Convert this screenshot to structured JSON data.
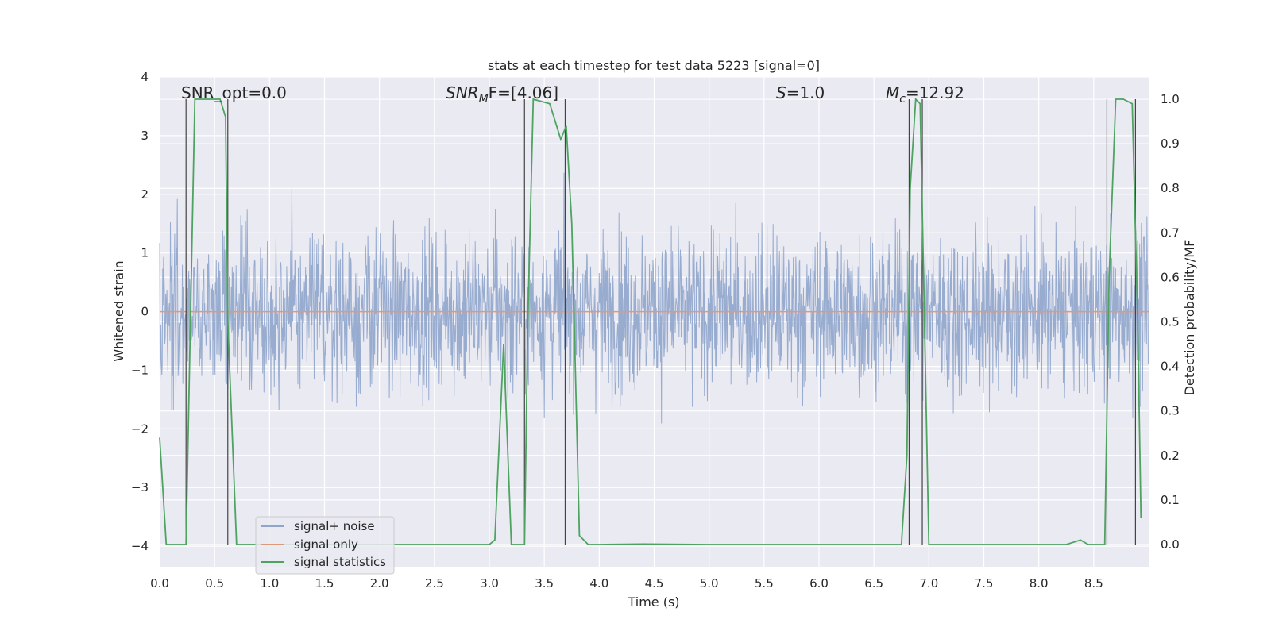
{
  "chart_data": {
    "type": "line",
    "title": "stats at each timestep for test data 5223 [signal=0]",
    "xlabel": "Time (s)",
    "ylabel": "Whitened strain",
    "ylabel_right": "Detection probability/MF",
    "xlim": [
      0.0,
      9.0
    ],
    "ylim": [
      -4.35,
      4.0
    ],
    "ylim_right": [
      -0.05,
      1.05
    ],
    "xticks": [
      "0.0",
      "0.5",
      "1.0",
      "1.5",
      "2.0",
      "2.5",
      "3.0",
      "3.5",
      "4.0",
      "4.5",
      "5.0",
      "5.5",
      "6.0",
      "6.5",
      "7.0",
      "7.5",
      "8.0",
      "8.5"
    ],
    "xtick_values": [
      0.0,
      0.5,
      1.0,
      1.5,
      2.0,
      2.5,
      3.0,
      3.5,
      4.0,
      4.5,
      5.0,
      5.5,
      6.0,
      6.5,
      7.0,
      7.5,
      8.0,
      8.5
    ],
    "yticks": [
      "−4",
      "−3",
      "−2",
      "−1",
      "0",
      "1",
      "2",
      "3",
      "4"
    ],
    "ytick_values": [
      -4,
      -3,
      -2,
      -1,
      0,
      1,
      2,
      3,
      4
    ],
    "yticks_right": [
      "0.0",
      "0.1",
      "0.2",
      "0.3",
      "0.4",
      "0.5",
      "0.6",
      "0.7",
      "0.8",
      "0.9",
      "1.0"
    ],
    "ytick_right_values": [
      0.0,
      0.1,
      0.2,
      0.3,
      0.4,
      0.5,
      0.6,
      0.7,
      0.8,
      0.9,
      1.0
    ],
    "grid": true,
    "legend_position": "bottom-left",
    "annotations": {
      "snr_opt": "SNR_opt=0.0",
      "snr_mf_prefix": "SNR",
      "snr_mf_sub": "M",
      "snr_mf_suffix": "F=[4.06]",
      "s_prefix": "S",
      "s_suffix": "=1.0",
      "mc_prefix": "M",
      "mc_sub": "c",
      "mc_suffix": "=12.92"
    },
    "series": [
      {
        "name": "signal+ noise",
        "color": "#8fa5cc",
        "axis": "left",
        "sample_rate_hz": 256,
        "envelope_upper_typical": 2.0,
        "envelope_lower_typical": -2.0,
        "x": [],
        "y": []
      },
      {
        "name": "signal only",
        "color": "#e0987a",
        "axis": "left",
        "x": [
          0.0,
          9.0
        ],
        "y": [
          0.0,
          0.0
        ]
      },
      {
        "name": "signal statistics",
        "color": "#4ea361",
        "axis": "right",
        "x": [
          0.0,
          0.06,
          0.24,
          0.28,
          0.32,
          0.55,
          0.6,
          0.62,
          0.7,
          1.0,
          2.0,
          3.0,
          3.05,
          3.13,
          3.2,
          3.32,
          3.35,
          3.4,
          3.55,
          3.65,
          3.7,
          3.75,
          3.82,
          3.9,
          4.0,
          4.4,
          5.0,
          6.0,
          6.75,
          6.8,
          6.83,
          6.88,
          6.92,
          6.96,
          7.0,
          8.0,
          8.25,
          8.38,
          8.45,
          8.6,
          8.64,
          8.7,
          8.77,
          8.85,
          8.9,
          8.93
        ],
        "y": [
          0.24,
          0.0,
          0.0,
          0.5,
          1.0,
          1.0,
          0.96,
          0.5,
          0.0,
          0.0,
          0.0,
          0.0,
          0.01,
          0.45,
          0.0,
          0.0,
          0.5,
          1.0,
          0.99,
          0.91,
          0.94,
          0.72,
          0.02,
          0.0,
          0.0,
          0.001,
          0.0,
          0.0,
          0.0,
          0.2,
          0.8,
          1.0,
          0.99,
          0.5,
          0.0,
          0.0,
          0.0,
          0.01,
          0.0,
          0.0,
          0.6,
          1.0,
          1.0,
          0.99,
          0.5,
          0.06
        ]
      }
    ],
    "vertical_lines": [
      {
        "x": 0.24,
        "ymin": 0.0,
        "ymax": 1.0
      },
      {
        "x": 0.62,
        "ymin": 0.0,
        "ymax": 1.0
      },
      {
        "x": 3.32,
        "ymin": 0.0,
        "ymax": 1.0
      },
      {
        "x": 3.69,
        "ymin": 0.0,
        "ymax": 1.0
      },
      {
        "x": 6.82,
        "ymin": 0.0,
        "ymax": 1.0
      },
      {
        "x": 6.94,
        "ymin": 0.0,
        "ymax": 1.0
      },
      {
        "x": 8.62,
        "ymin": 0.0,
        "ymax": 1.0
      },
      {
        "x": 8.88,
        "ymin": 0.0,
        "ymax": 1.0
      }
    ]
  }
}
